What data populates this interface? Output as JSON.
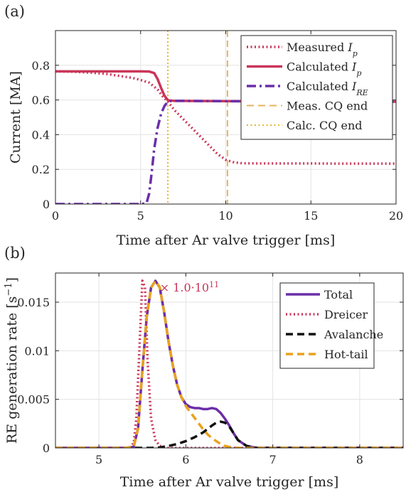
{
  "colors": {
    "measured": "#c9365a",
    "calculated": "#c9365a",
    "re": "#6b2fa8",
    "meas_cq": "#e6b45a",
    "calc_cq": "#e3b832",
    "total": "#6b2fa8",
    "dreicer": "#c9365a",
    "avalanche": "#111111",
    "hottail": "#e8a21e"
  },
  "chart_data": [
    {
      "type": "line",
      "panel_label": "(a)",
      "xlabel": "Time after Ar valve trigger [ms]",
      "ylabel": "Current [MA]",
      "xlim": [
        0,
        20
      ],
      "ylim": [
        0,
        1
      ],
      "xticks": [
        0,
        5,
        10,
        15,
        20
      ],
      "xtick_labels": [
        "0",
        "5",
        "10",
        "15",
        "20"
      ],
      "yticks": [
        0,
        0.2,
        0.4,
        0.6,
        0.8
      ],
      "ytick_labels": [
        "0",
        "0.2",
        "0.4",
        "0.6",
        "0.8"
      ],
      "grid": true,
      "legend_position": "top-right",
      "series": [
        {
          "key": "measured",
          "name": "Measured I",
          "sub": "p",
          "style": "dotted",
          "x": [
            0,
            1,
            2,
            3,
            4,
            4.5,
            5,
            5.5,
            6,
            6.3,
            6.6,
            7,
            7.5,
            8,
            8.5,
            9,
            9.5,
            10,
            10.5,
            11,
            12,
            13,
            15,
            17,
            20
          ],
          "y": [
            0.765,
            0.763,
            0.758,
            0.75,
            0.735,
            0.728,
            0.715,
            0.7,
            0.66,
            0.62,
            0.59,
            0.54,
            0.49,
            0.44,
            0.39,
            0.34,
            0.29,
            0.255,
            0.24,
            0.235,
            0.234,
            0.234,
            0.234,
            0.233,
            0.233
          ]
        },
        {
          "key": "calculated",
          "name": "Calculated I",
          "sub": "p",
          "style": "solid",
          "x": [
            0,
            1,
            2,
            3,
            4,
            5,
            5.5,
            5.8,
            6.0,
            6.2,
            6.4,
            6.6,
            7,
            8,
            10,
            12,
            15,
            18,
            20
          ],
          "y": [
            0.765,
            0.765,
            0.765,
            0.765,
            0.765,
            0.765,
            0.764,
            0.755,
            0.72,
            0.67,
            0.625,
            0.598,
            0.595,
            0.594,
            0.593,
            0.592,
            0.591,
            0.59,
            0.59
          ]
        },
        {
          "key": "re",
          "name": "Calculated I",
          "sub": "RE",
          "style": "dashdot",
          "x": [
            0,
            1,
            2,
            3,
            4,
            5,
            5.35,
            5.5,
            5.65,
            5.8,
            6.0,
            6.2,
            6.4,
            6.6,
            6.8,
            7,
            10,
            15,
            20
          ],
          "y": [
            0,
            0,
            0,
            0,
            0,
            0,
            0.005,
            0.06,
            0.18,
            0.32,
            0.44,
            0.52,
            0.565,
            0.59,
            0.595,
            0.595,
            0.593,
            0.591,
            0.59
          ]
        }
      ],
      "vlines": [
        {
          "key": "meas_cq",
          "name": "Meas. CQ end",
          "x": 10.1,
          "style": "dashed"
        },
        {
          "key": "calc_cq",
          "name": "Calc. CQ end",
          "x": 6.6,
          "style": "dotted"
        }
      ]
    },
    {
      "type": "line",
      "panel_label": "(b)",
      "xlabel": "Time after Ar valve trigger [ms]",
      "ylabel": "RE generation rate [s",
      "ylabel_sup": "−1",
      "ylabel_end": "]",
      "multiplier": "× 1.0·10",
      "multiplier_exp": "11",
      "xlim": [
        4.5,
        8.5
      ],
      "ylim": [
        0,
        0.018
      ],
      "xticks": [
        5,
        6,
        7,
        8
      ],
      "xtick_labels": [
        "5",
        "6",
        "7",
        "8"
      ],
      "yticks": [
        0,
        0.005,
        0.01,
        0.015
      ],
      "ytick_labels": [
        "0",
        "0.005",
        "0.01",
        "0.015"
      ],
      "grid": true,
      "legend_position": "top-right",
      "series": [
        {
          "key": "total",
          "name": "Total",
          "style": "solid",
          "x": [
            4.5,
            5.3,
            5.4,
            5.45,
            5.5,
            5.55,
            5.6,
            5.65,
            5.7,
            5.75,
            5.8,
            5.85,
            5.9,
            5.95,
            6.0,
            6.05,
            6.1,
            6.15,
            6.2,
            6.25,
            6.3,
            6.35,
            6.4,
            6.45,
            6.5,
            6.55,
            6.6,
            6.7,
            6.8,
            7.0,
            8.5
          ],
          "y": [
            0,
            0,
            0.0001,
            0.002,
            0.008,
            0.0135,
            0.0165,
            0.0172,
            0.0165,
            0.014,
            0.011,
            0.0085,
            0.0065,
            0.0052,
            0.0045,
            0.0042,
            0.0041,
            0.0041,
            0.004,
            0.004,
            0.0041,
            0.004,
            0.0036,
            0.003,
            0.0023,
            0.0015,
            0.0008,
            0.0002,
            3e-05,
            0,
            0
          ]
        },
        {
          "key": "dreicer",
          "name": "Dreicer",
          "style": "dotted",
          "x": [
            4.5,
            5.35,
            5.4,
            5.43,
            5.46,
            5.5,
            5.53,
            5.56,
            5.6,
            5.65,
            5.7,
            5.8,
            8.5
          ],
          "y": [
            0,
            0,
            0.0005,
            0.003,
            0.009,
            0.0172,
            0.0165,
            0.009,
            0.003,
            0.0008,
            0.0002,
            0,
            0
          ]
        },
        {
          "key": "avalanche",
          "name": "Avalanche",
          "style": "dashed",
          "x": [
            4.5,
            5.6,
            5.7,
            5.8,
            5.9,
            6.0,
            6.1,
            6.2,
            6.3,
            6.35,
            6.4,
            6.45,
            6.5,
            6.55,
            6.6,
            6.7,
            6.8,
            8.5
          ],
          "y": [
            0,
            0,
            5e-05,
            0.0002,
            0.0004,
            0.0007,
            0.0011,
            0.0016,
            0.0023,
            0.0026,
            0.0027,
            0.0026,
            0.0022,
            0.0015,
            0.0008,
            0.0002,
            0,
            0
          ]
        },
        {
          "key": "hottail",
          "name": "Hot-tail",
          "style": "dashed",
          "x": [
            4.5,
            5.3,
            5.4,
            5.45,
            5.5,
            5.55,
            5.6,
            5.65,
            5.7,
            5.75,
            5.8,
            5.85,
            5.9,
            5.95,
            6.0,
            6.05,
            6.1,
            6.15,
            6.2,
            6.25,
            6.3,
            6.35,
            6.4,
            6.45,
            6.5,
            6.6,
            8.5
          ],
          "y": [
            0,
            0,
            0.0001,
            0.002,
            0.008,
            0.0135,
            0.0165,
            0.0172,
            0.0165,
            0.014,
            0.011,
            0.0085,
            0.0065,
            0.0052,
            0.0043,
            0.0037,
            0.0031,
            0.0025,
            0.0019,
            0.0014,
            0.001,
            0.0007,
            0.0004,
            0.0002,
            0.0001,
            0,
            0
          ]
        }
      ]
    }
  ]
}
